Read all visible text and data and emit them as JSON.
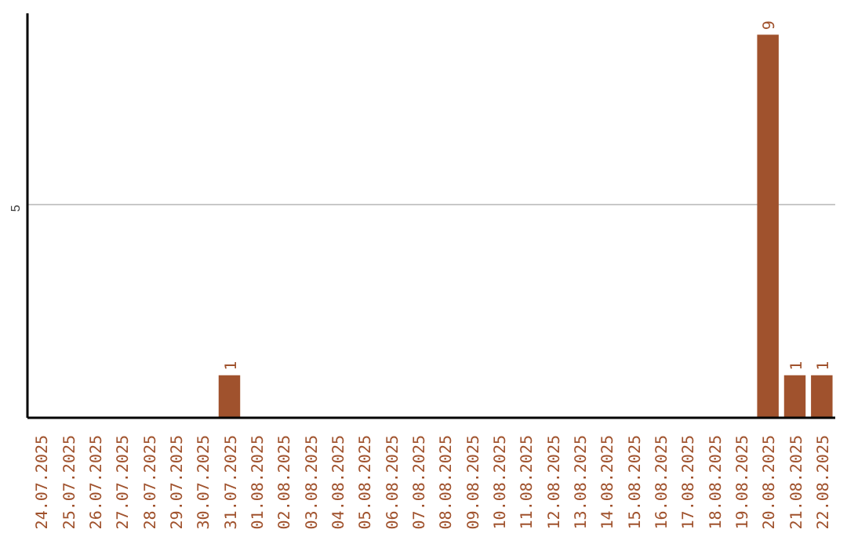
{
  "chart_data": {
    "type": "bar",
    "categories": [
      "24.07.2025",
      "25.07.2025",
      "26.07.2025",
      "27.07.2025",
      "28.07.2025",
      "29.07.2025",
      "30.07.2025",
      "31.07.2025",
      "01.08.2025",
      "02.08.2025",
      "03.08.2025",
      "04.08.2025",
      "05.08.2025",
      "06.08.2025",
      "07.08.2025",
      "08.08.2025",
      "09.08.2025",
      "10.08.2025",
      "11.08.2025",
      "12.08.2025",
      "13.08.2025",
      "14.08.2025",
      "15.08.2025",
      "16.08.2025",
      "17.08.2025",
      "18.08.2025",
      "19.08.2025",
      "20.08.2025",
      "21.08.2025",
      "22.08.2025"
    ],
    "values": [
      0,
      0,
      0,
      0,
      0,
      0,
      0,
      1,
      0,
      0,
      0,
      0,
      0,
      0,
      0,
      0,
      0,
      0,
      0,
      0,
      0,
      0,
      0,
      0,
      0,
      0,
      0,
      9,
      1,
      1
    ],
    "value_labels": [
      null,
      null,
      null,
      null,
      null,
      null,
      null,
      "1",
      null,
      null,
      null,
      null,
      null,
      null,
      null,
      null,
      null,
      null,
      null,
      null,
      null,
      null,
      null,
      null,
      null,
      null,
      null,
      "9",
      "1",
      "1"
    ],
    "color": "#a0522d",
    "ylim": [
      0,
      9.5
    ],
    "yticks": [
      5
    ],
    "grid": "y"
  }
}
